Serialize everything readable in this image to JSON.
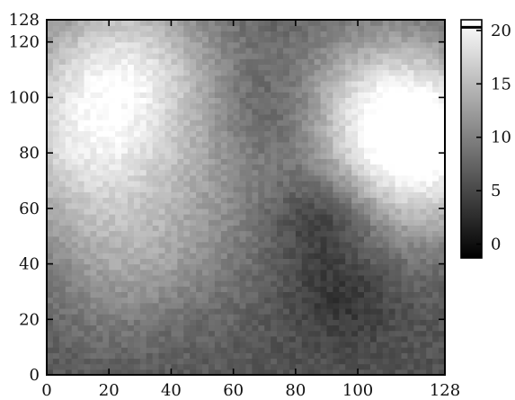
{
  "chart_data": {
    "type": "heatmap",
    "title": "",
    "xlabel": "",
    "ylabel": "",
    "grid": false,
    "colormap": "grayscale",
    "colormap_stops": [
      "#000000",
      "#ffffff"
    ],
    "x_range": [
      0,
      128
    ],
    "y_range": [
      0,
      128
    ],
    "x_ticks": [
      0,
      20,
      40,
      60,
      80,
      100,
      128
    ],
    "y_ticks": [
      0,
      20,
      40,
      60,
      80,
      100,
      120,
      128
    ],
    "colorbar": {
      "range": [
        -1.3,
        21
      ],
      "ticks": [
        0,
        5,
        10,
        15,
        20
      ],
      "marker_value": 20.3,
      "marker_color": "#000000"
    },
    "field_description_values": {
      "grid_size": [
        128,
        128
      ],
      "background_value": 6,
      "bright_regions": [
        {
          "x": 25,
          "y": 112,
          "value": 17
        },
        {
          "x": 10,
          "y": 80,
          "value": 15
        },
        {
          "x": 112,
          "y": 95,
          "value": 18
        },
        {
          "x": 122,
          "y": 75,
          "value": 15
        },
        {
          "x": 30,
          "y": 40,
          "value": 12
        },
        {
          "x": 55,
          "y": 75,
          "value": 9
        }
      ],
      "dark_regions": [
        {
          "x": 80,
          "y": 85,
          "value": 4
        },
        {
          "x": 90,
          "y": 58,
          "value": 1
        },
        {
          "x": 95,
          "y": 28,
          "value": 3
        },
        {
          "x": 70,
          "y": 98,
          "value": 4
        },
        {
          "x": 40,
          "y": 20,
          "value": 5
        }
      ]
    }
  }
}
